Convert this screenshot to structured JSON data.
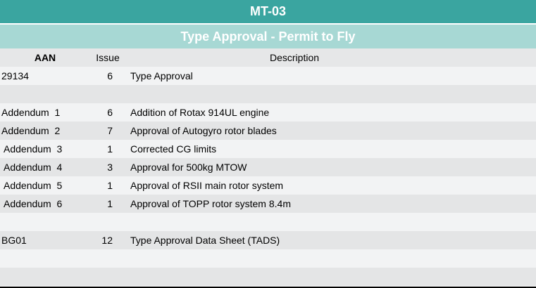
{
  "title": "MT-03",
  "subtitle": "Type Approval - Permit to Fly",
  "columns": {
    "aan": "AAN",
    "issue": "Issue",
    "description": "Description"
  },
  "rows": [
    {
      "aan": "29134",
      "issue": "6",
      "description": "Type Approval"
    },
    {
      "aan": "",
      "issue": "",
      "description": ""
    },
    {
      "aan": "Addendum  1",
      "issue": "6",
      "description": "Addition of Rotax 914UL engine"
    },
    {
      "aan": "Addendum  2",
      "issue": "7",
      "description": "Approval of Autogyro rotor blades"
    },
    {
      "aan": "Addendum  3",
      "issue": "1",
      "description": "Corrected CG limits"
    },
    {
      "aan": "Addendum  4",
      "issue": "3",
      "description": "Approval for 500kg MTOW"
    },
    {
      "aan": "Addendum  5",
      "issue": "1",
      "description": "Approval of RSII main rotor system"
    },
    {
      "aan": "Addendum  6",
      "issue": "1",
      "description": "Approval of TOPP rotor system 8.4m"
    },
    {
      "aan": "",
      "issue": "",
      "description": ""
    },
    {
      "aan": "BG01",
      "issue": "12",
      "description": "Type Approval Data Sheet (TADS)"
    },
    {
      "aan": "",
      "issue": "",
      "description": ""
    },
    {
      "aan": "",
      "issue": "",
      "description": ""
    }
  ]
}
